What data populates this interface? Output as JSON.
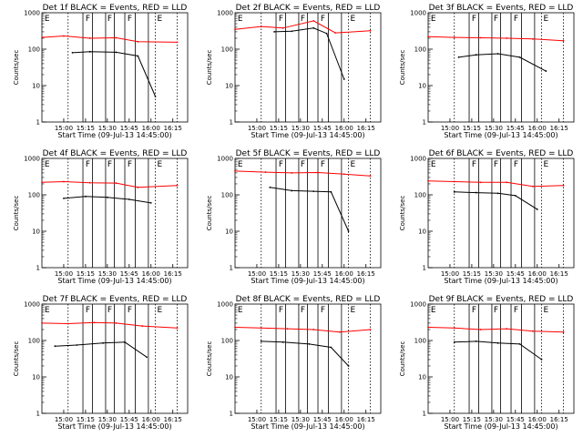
{
  "figure": {
    "ylabel": "Counts/sec",
    "yticks": [
      "1",
      "10",
      "100",
      "1000"
    ],
    "ylim": [
      1,
      1000
    ],
    "yscale": "log",
    "xticks": [
      "15:00",
      "15:15",
      "15:30",
      "15:45",
      "16:00",
      "16:15"
    ],
    "xtick_hours": [
      15.0,
      15.25,
      15.5,
      15.75,
      16.0,
      16.25
    ],
    "xlim_hours": [
      14.75,
      16.42
    ],
    "colors": {
      "events": "#000000",
      "lld": "#ff0000"
    }
  },
  "chart_data": [
    {
      "type": "line",
      "title": "Det 1f BLACK = Events, RED = LLD",
      "xlabel": "Start Time (09-Jul-13 14:45:00)",
      "series": [
        {
          "name": "Events",
          "x": [
            15.1,
            15.3,
            15.6,
            15.85,
            16.05
          ],
          "y": [
            80,
            85,
            82,
            65,
            5
          ]
        },
        {
          "name": "LLD",
          "x": [
            14.75,
            15.0,
            15.3,
            15.6,
            15.85,
            16.3
          ],
          "y": [
            210,
            230,
            200,
            205,
            160,
            155
          ]
        }
      ],
      "region_labels": [
        "E",
        "F",
        "F",
        "F",
        "E"
      ]
    },
    {
      "type": "line",
      "title": "Det 2f BLACK = Events, RED = LLD",
      "xlabel": "Start Time (09-Jul-13 14:45:00)",
      "series": [
        {
          "name": "Events",
          "x": [
            15.2,
            15.4,
            15.65,
            15.8,
            16.0
          ],
          "y": [
            300,
            310,
            380,
            270,
            15
          ]
        },
        {
          "name": "LLD",
          "x": [
            14.75,
            15.05,
            15.3,
            15.65,
            15.9,
            16.3
          ],
          "y": [
            350,
            420,
            380,
            600,
            280,
            320
          ]
        }
      ],
      "region_labels": [
        "E",
        "F",
        "F",
        "F",
        "E"
      ]
    },
    {
      "type": "line",
      "title": "Det 3f BLACK = Events, RED = LLD",
      "xlabel": "Start Time (09-Jul-13 14:45:00)",
      "series": [
        {
          "name": "Events",
          "x": [
            15.1,
            15.3,
            15.55,
            15.8,
            16.1
          ],
          "y": [
            60,
            70,
            75,
            60,
            25
          ]
        },
        {
          "name": "LLD",
          "x": [
            14.75,
            15.05,
            15.35,
            15.65,
            15.95,
            16.3
          ],
          "y": [
            220,
            210,
            205,
            200,
            190,
            170
          ]
        }
      ],
      "region_labels": [
        "E",
        "F",
        "F",
        "F",
        "E"
      ]
    },
    {
      "type": "line",
      "title": "Det 4f BLACK = Events, RED = LLD",
      "xlabel": "Start Time (09-Jul-13 14:45:00)",
      "series": [
        {
          "name": "Events",
          "x": [
            15.0,
            15.25,
            15.5,
            15.75,
            16.0
          ],
          "y": [
            80,
            90,
            85,
            75,
            60
          ]
        },
        {
          "name": "LLD",
          "x": [
            14.75,
            15.0,
            15.3,
            15.6,
            15.85,
            16.3
          ],
          "y": [
            220,
            230,
            215,
            210,
            160,
            180
          ]
        }
      ],
      "region_labels": [
        "E",
        "F",
        "F",
        "F",
        "E"
      ]
    },
    {
      "type": "line",
      "title": "Det 5f BLACK = Events, RED = LLD",
      "xlabel": "Start Time (09-Jul-13 14:45:00)",
      "series": [
        {
          "name": "Events",
          "x": [
            15.15,
            15.4,
            15.65,
            15.85,
            16.05
          ],
          "y": [
            160,
            130,
            125,
            120,
            10
          ]
        },
        {
          "name": "LLD",
          "x": [
            14.75,
            15.1,
            15.4,
            15.7,
            16.0,
            16.3
          ],
          "y": [
            450,
            420,
            400,
            410,
            370,
            330
          ]
        }
      ],
      "region_labels": [
        "E",
        "F",
        "F",
        "F",
        "E"
      ]
    },
    {
      "type": "line",
      "title": "Det 6f BLACK = Events, RED = LLD",
      "xlabel": "Start Time (09-Jul-13 14:45:00)",
      "series": [
        {
          "name": "Events",
          "x": [
            15.05,
            15.3,
            15.55,
            15.75,
            16.0
          ],
          "y": [
            120,
            115,
            110,
            95,
            40
          ]
        },
        {
          "name": "LLD",
          "x": [
            14.75,
            15.05,
            15.35,
            15.65,
            15.95,
            16.3
          ],
          "y": [
            240,
            230,
            220,
            220,
            170,
            180
          ]
        }
      ],
      "region_labels": [
        "E",
        "F",
        "F",
        "F",
        "E"
      ]
    },
    {
      "type": "line",
      "title": "Det 7f BLACK = Events, RED = LLD",
      "xlabel": "Start Time (09-Jul-13 14:45:00)",
      "series": [
        {
          "name": "Events",
          "x": [
            14.9,
            15.15,
            15.45,
            15.7,
            15.95
          ],
          "y": [
            70,
            75,
            85,
            90,
            35
          ]
        },
        {
          "name": "LLD",
          "x": [
            14.75,
            15.05,
            15.35,
            15.6,
            15.9,
            16.3
          ],
          "y": [
            300,
            290,
            310,
            300,
            250,
            220
          ]
        }
      ],
      "region_labels": [
        "E",
        "F",
        "F",
        "F",
        "E"
      ]
    },
    {
      "type": "line",
      "title": "Det 8f BLACK = Events, RED = LLD",
      "xlabel": "Start Time (09-Jul-13 14:45:00)",
      "series": [
        {
          "name": "Events",
          "x": [
            15.05,
            15.3,
            15.6,
            15.85,
            16.05
          ],
          "y": [
            95,
            90,
            80,
            65,
            20
          ]
        },
        {
          "name": "LLD",
          "x": [
            14.75,
            15.05,
            15.35,
            15.65,
            15.95,
            16.3
          ],
          "y": [
            230,
            220,
            210,
            200,
            170,
            200
          ]
        }
      ],
      "region_labels": [
        "E",
        "F",
        "F",
        "F",
        "E"
      ]
    },
    {
      "type": "line",
      "title": "Det 9f BLACK = Events, RED = LLD",
      "xlabel": "Start Time (09-Jul-13 14:45:00)",
      "series": [
        {
          "name": "Events",
          "x": [
            15.05,
            15.3,
            15.55,
            15.8,
            16.05
          ],
          "y": [
            90,
            95,
            85,
            80,
            30
          ]
        },
        {
          "name": "LLD",
          "x": [
            14.75,
            15.05,
            15.35,
            15.65,
            15.95,
            16.3
          ],
          "y": [
            230,
            220,
            200,
            210,
            180,
            170
          ]
        }
      ],
      "region_labels": [
        "E",
        "F",
        "F",
        "F",
        "E"
      ]
    }
  ]
}
